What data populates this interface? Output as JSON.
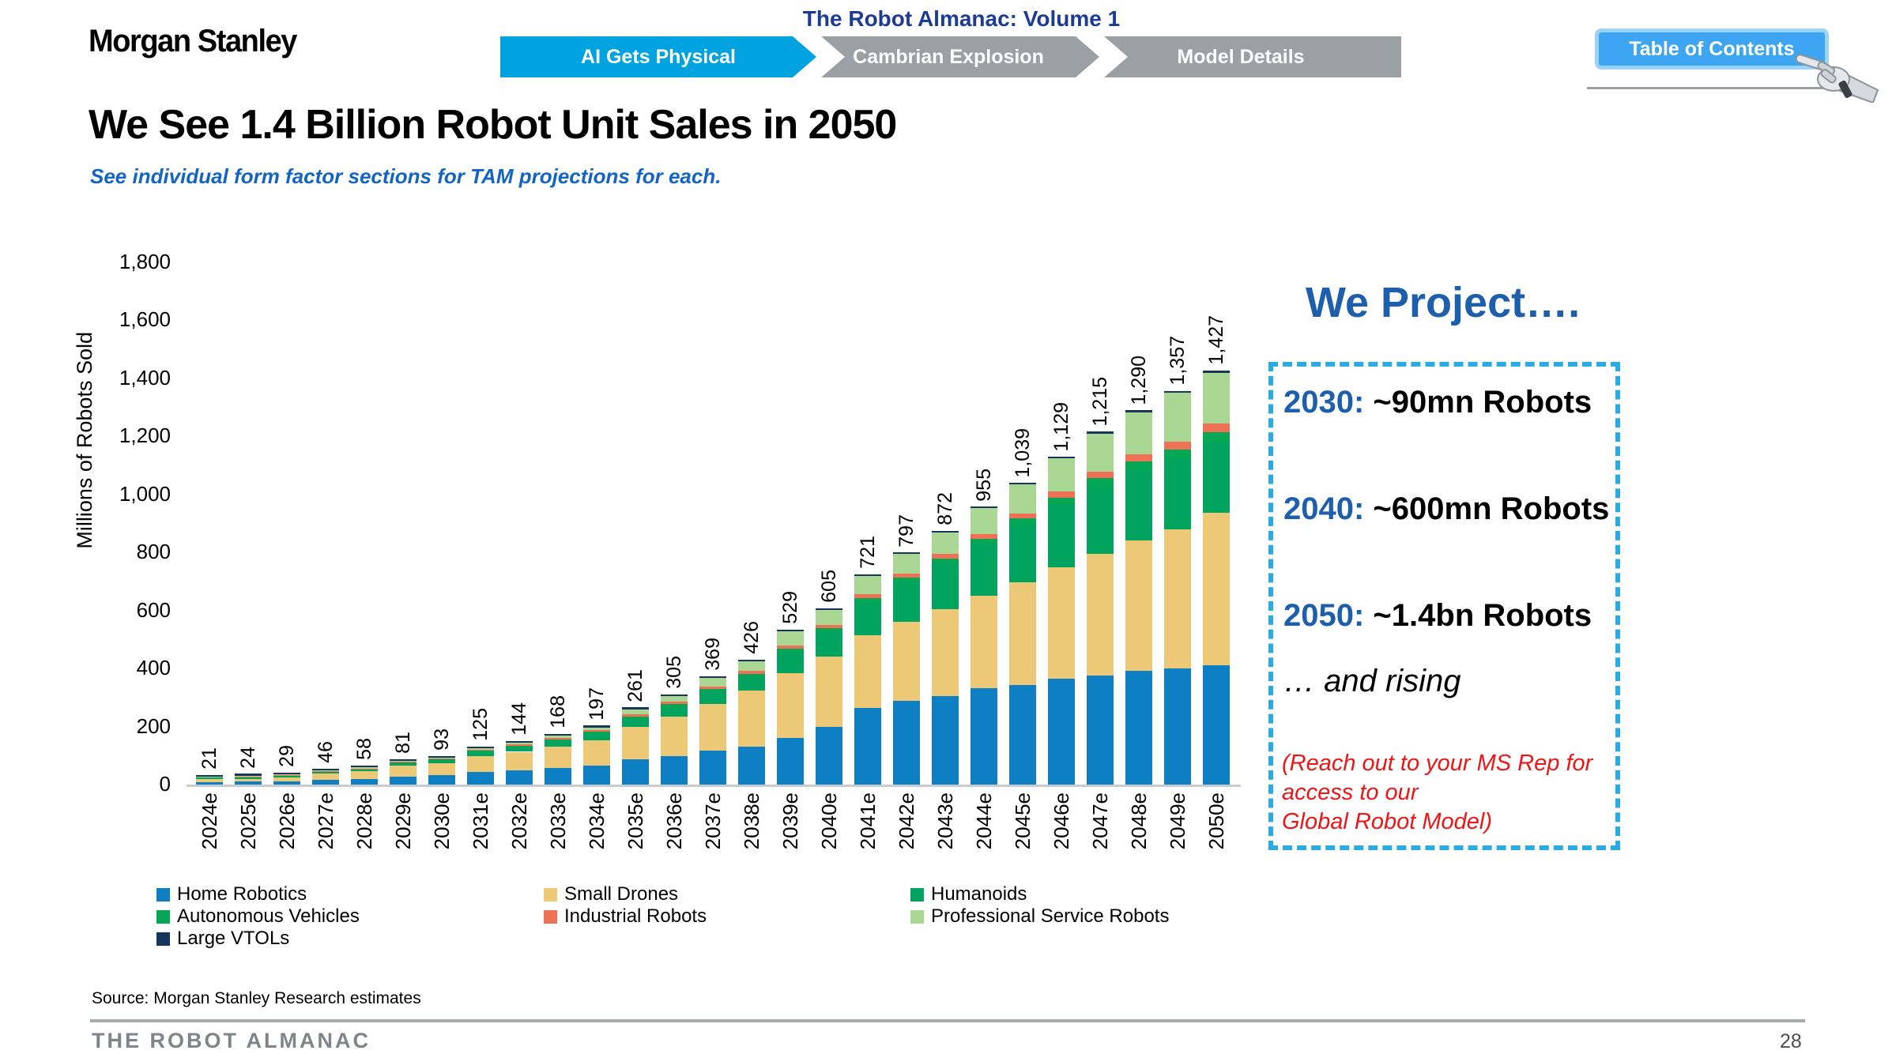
{
  "header": {
    "logo": "Morgan Stanley",
    "almanac_title": "The Robot Almanac: Volume 1",
    "tabs": [
      {
        "label": "AI Gets Physical",
        "active": true
      },
      {
        "label": "Cambrian Explosion",
        "active": false
      },
      {
        "label": "Model Details",
        "active": false
      }
    ],
    "toc_button": "Table of Contents",
    "tab_active_color": "#00a2e0",
    "tab_inactive_color": "#9ba0a5"
  },
  "title": "We See 1.4 Billion Robot Unit Sales in 2050",
  "subtitle": "See individual form factor sections for TAM projections for each.",
  "chart_data": {
    "type": "bar",
    "stacked": true,
    "ylabel": "Millions of Robots Sold",
    "ylim": [
      0,
      1800
    ],
    "ytick_step": 200,
    "grid": false,
    "legend_position": "bottom",
    "categories": [
      "2024e",
      "2025e",
      "2026e",
      "2027e",
      "2028e",
      "2029e",
      "2030e",
      "2031e",
      "2032e",
      "2033e",
      "2034e",
      "2035e",
      "2036e",
      "2037e",
      "2038e",
      "2039e",
      "2040e",
      "2041e",
      "2042e",
      "2043e",
      "2044e",
      "2045e",
      "2046e",
      "2047e",
      "2048e",
      "2049e",
      "2050e"
    ],
    "totals": [
      21,
      24,
      29,
      46,
      58,
      81,
      93,
      125,
      144,
      168,
      197,
      261,
      305,
      369,
      426,
      529,
      605,
      721,
      797,
      872,
      955,
      1039,
      1129,
      1215,
      1290,
      1357,
      1427
    ],
    "total_labels": [
      "21",
      "24",
      "29",
      "46",
      "58",
      "81",
      "93",
      "125",
      "144",
      "168",
      "197",
      "261",
      "305",
      "369",
      "426",
      "529",
      "605",
      "721",
      "797",
      "872",
      "955",
      "1,039",
      "1,129",
      "1,215",
      "1,290",
      "1,357",
      "1,427"
    ],
    "series": [
      {
        "name": "Home Robotics",
        "color": "#0f7fc3",
        "values": [
          9,
          10,
          12,
          16,
          20,
          28,
          32,
          43,
          49,
          57,
          66,
          86,
          99,
          118,
          132,
          160,
          200,
          265,
          290,
          304,
          331,
          342,
          364,
          375,
          392,
          400,
          410
        ]
      },
      {
        "name": "Small Drones",
        "color": "#edc977",
        "values": [
          9,
          10,
          12,
          21,
          26,
          37,
          42,
          56,
          64,
          74,
          86,
          112,
          136,
          160,
          193,
          225,
          240,
          250,
          270,
          300,
          320,
          355,
          385,
          420,
          450,
          480,
          528
        ]
      },
      {
        "name": "Humanoids",
        "color": "#00a45e",
        "values": [
          1,
          1,
          2,
          3,
          4,
          6,
          8,
          12,
          15,
          18,
          22,
          27,
          32,
          42,
          47,
          72,
          88,
          115,
          138,
          158,
          178,
          198,
          215,
          233,
          240,
          242,
          240
        ]
      },
      {
        "name": "Autonomous Vehicles",
        "color": "#06a754",
        "values": [
          1,
          1,
          1,
          2,
          3,
          4,
          4,
          5,
          6,
          7,
          8,
          10,
          10,
          10,
          10,
          12,
          12,
          14,
          15,
          17,
          19,
          22,
          25,
          28,
          31,
          34,
          37
        ]
      },
      {
        "name": "Industrial Robots",
        "color": "#ee7055",
        "values": [
          0,
          1,
          1,
          2,
          2,
          3,
          3,
          4,
          4,
          5,
          5,
          7,
          8,
          9,
          9,
          10,
          10,
          12,
          13,
          15,
          16,
          18,
          20,
          22,
          25,
          27,
          30
        ]
      },
      {
        "name": "Professional Service Robots",
        "color": "#abd795",
        "values": [
          1,
          1,
          1,
          2,
          3,
          3,
          4,
          5,
          6,
          7,
          10,
          18,
          19,
          29,
          34,
          49,
          52,
          62,
          68,
          75,
          88,
          99,
          115,
          132,
          145,
          167,
          175
        ]
      },
      {
        "name": "Large VTOLs",
        "color": "#16365c",
        "values": [
          0,
          0,
          0,
          0,
          0,
          0,
          0,
          0,
          0,
          0,
          0,
          1,
          1,
          1,
          1,
          1,
          3,
          3,
          3,
          3,
          3,
          5,
          5,
          5,
          7,
          7,
          7
        ]
      }
    ],
    "legend_columns": [
      [
        "Home Robotics",
        "Autonomous Vehicles",
        "Large VTOLs"
      ],
      [
        "Small Drones",
        "Industrial Robots"
      ],
      [
        "Humanoids",
        "Professional Service Robots"
      ]
    ]
  },
  "projection_panel": {
    "heading": "We Project….",
    "items": [
      {
        "year": "2030:",
        "value": "~90mn Robots"
      },
      {
        "year": "2040:",
        "value": "~600mn Robots"
      },
      {
        "year": "2050:",
        "value": "~1.4bn Robots"
      }
    ],
    "rising": "… and rising",
    "note_line1": "(Reach out to your MS Rep for access to our",
    "note_line2": "Global Robot Model)"
  },
  "footer": {
    "source": "Source: Morgan Stanley Research estimates",
    "publication": "THE ROBOT ALMANAC",
    "page": "28"
  }
}
